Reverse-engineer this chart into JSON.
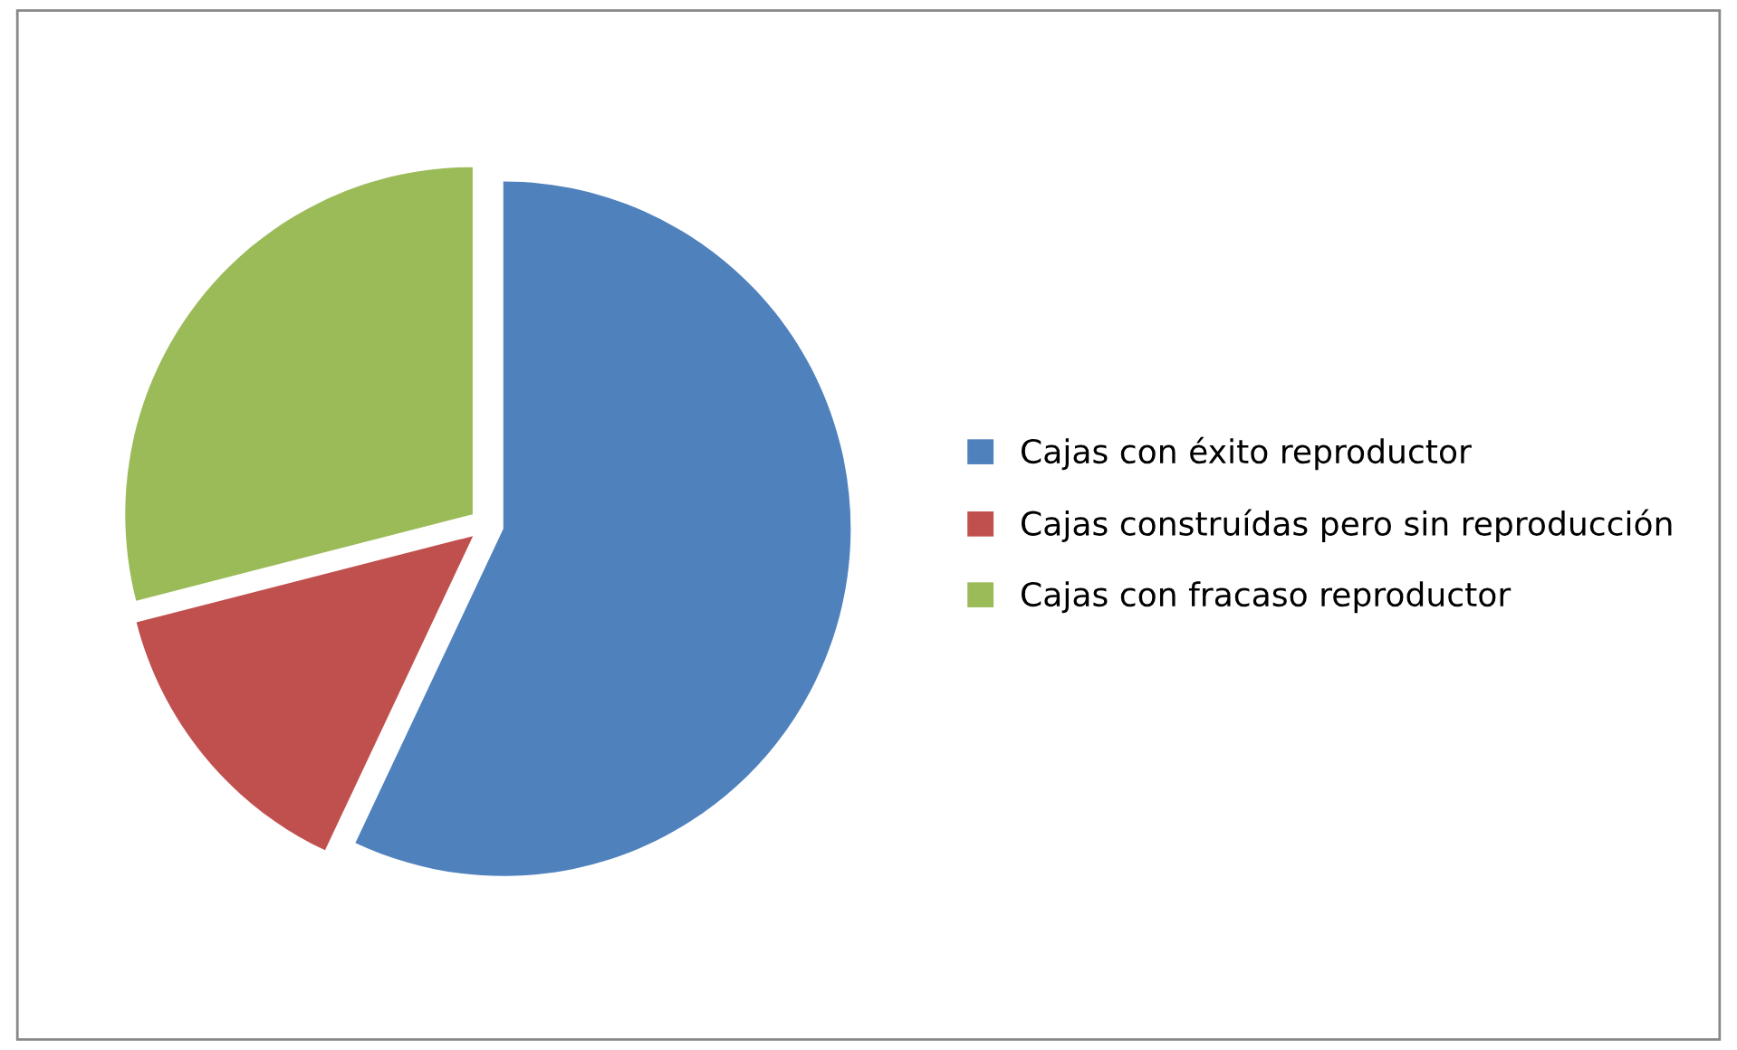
{
  "chart_data": {
    "type": "pie",
    "categories": [
      "Cajas con éxito reproductor",
      "Cajas construídas pero sin reproducción",
      "Cajas con fracaso reproductor"
    ],
    "values": [
      57,
      14,
      29
    ],
    "colors": [
      "#4f81bd",
      "#c0504d",
      "#9bbb59"
    ],
    "legend": "right"
  }
}
